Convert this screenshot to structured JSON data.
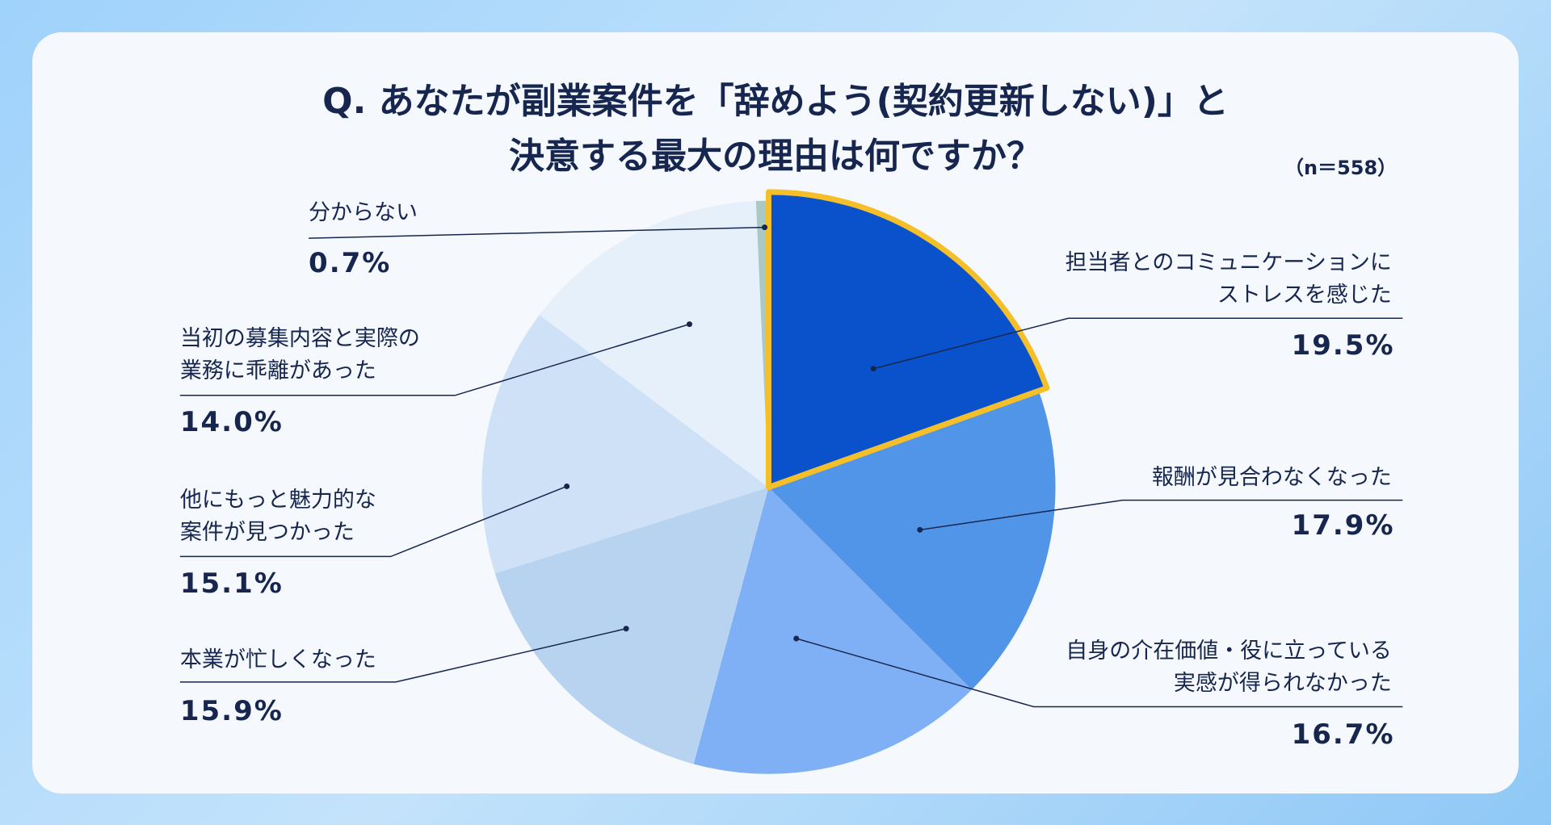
{
  "chart_data": {
    "type": "pie",
    "title": "Q. あなたが副業案件を「辞めよう(契約更新しない)」と\n決意する最大の理由は何ですか？",
    "annotation": "（n＝558）",
    "categories": [
      "担当者とのコミュニケーションに\nストレスを感じた",
      "報酬が見合わなくなった",
      "自身の介在価値・役に立っている\n実感が得られなかった",
      "本業が忙しくなった",
      "他にもっと魅力的な\n案件が見つかった",
      "当初の募集内容と実際の\n業務に乖離があった",
      "分からない"
    ],
    "values": [
      19.5,
      17.9,
      16.7,
      15.9,
      15.1,
      14.0,
      0.7
    ],
    "value_labels": [
      "19.5%",
      "17.9%",
      "16.7%",
      "15.9%",
      "15.1%",
      "14.0%",
      "0.7%"
    ],
    "colors": [
      "#0a52cc",
      "#5195e8",
      "#7fb0f5",
      "#b8d3f0",
      "#cfe1f7",
      "#e6f0fb",
      "#a9c9c2"
    ],
    "highlight_color": "#f5bf2a"
  }
}
